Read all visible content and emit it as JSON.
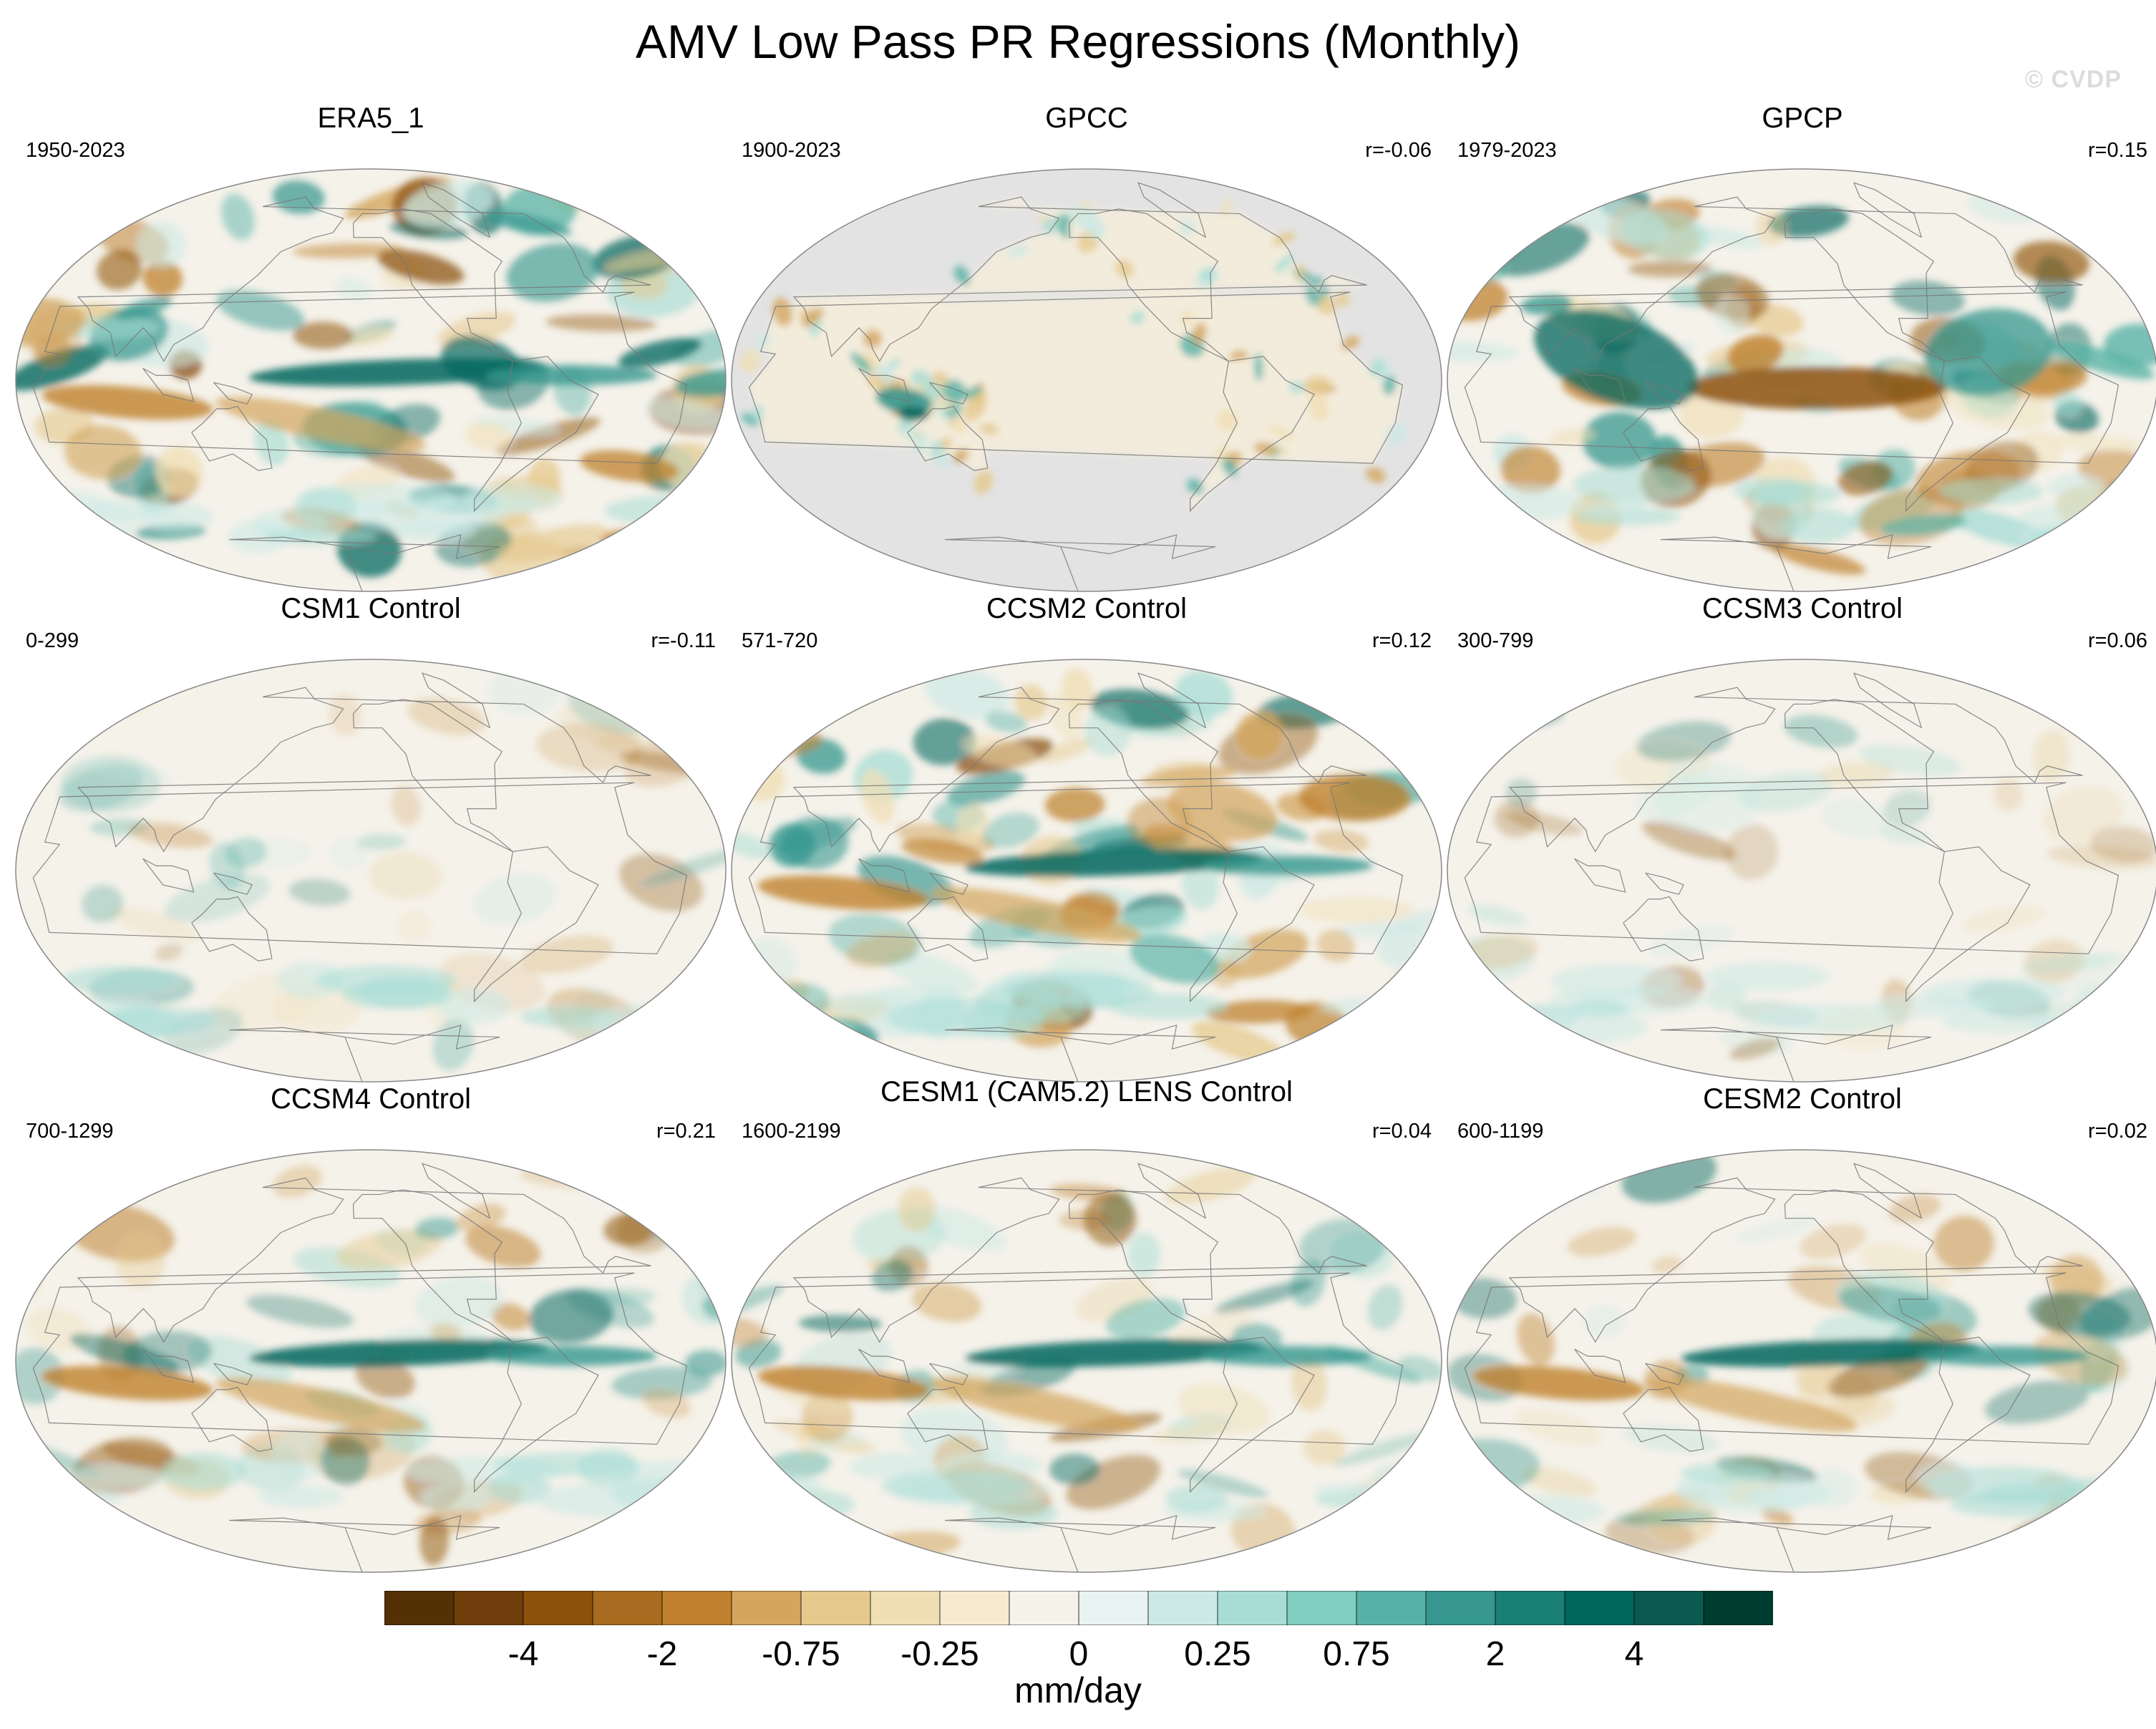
{
  "title": "AMV Low Pass PR Regressions (Monthly)",
  "watermark": "© CVDP",
  "panels": [
    {
      "title": "ERA5_1",
      "period": "1950-2023",
      "corr": "",
      "pattern": "era5"
    },
    {
      "title": "GPCC",
      "period": "1900-2023",
      "corr": "r=-0.06",
      "pattern": "gpcc",
      "land_only": true
    },
    {
      "title": "GPCP",
      "period": "1979-2023",
      "corr": "r=0.15",
      "pattern": "gpcp"
    },
    {
      "title": "CSM1 Control",
      "period": "0-299",
      "corr": "r=-0.11",
      "pattern": "weak"
    },
    {
      "title": "CCSM2 Control",
      "period": "571-720",
      "corr": "r=0.12",
      "pattern": "strong"
    },
    {
      "title": "CCSM3 Control",
      "period": "300-799",
      "corr": "r=0.06",
      "pattern": "weak"
    },
    {
      "title": "CCSM4 Control",
      "period": "700-1299",
      "corr": "r=0.21",
      "pattern": "itcz"
    },
    {
      "title": "CESM1 (CAM5.2) LENS Control",
      "period": "1600-2199",
      "corr": "r=0.04",
      "pattern": "itcz"
    },
    {
      "title": "CESM2 Control",
      "period": "600-1199",
      "corr": "r=0.02",
      "pattern": "itcz"
    }
  ],
  "colorbar": {
    "colors": [
      "#543005",
      "#6f3e0b",
      "#8c510a",
      "#a86b1f",
      "#bf812d",
      "#d3a55e",
      "#e5c88c",
      "#f0deb4",
      "#f6ebd0",
      "#f5f2ea",
      "#e8f4f2",
      "#cce9e5",
      "#a7ddd5",
      "#80cdc1",
      "#56b2a6",
      "#35978f",
      "#1a7f76",
      "#01665e",
      "#0a5a4f",
      "#003c30"
    ],
    "labels": [
      "-4",
      "-2",
      "-0.75",
      "-0.25",
      "0",
      "0.25",
      "0.75",
      "2",
      "4"
    ],
    "units": "mm/day"
  }
}
